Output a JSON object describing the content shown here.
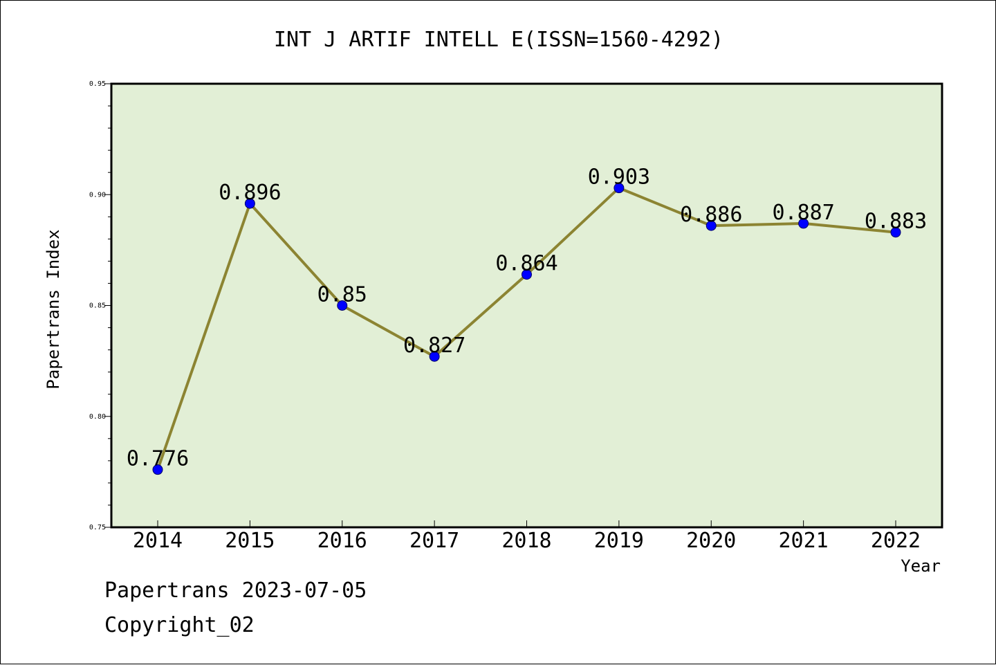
{
  "chart_data": {
    "type": "line",
    "title": "INT J ARTIF INTELL E(ISSN=1560-4292)",
    "xlabel": "Year",
    "ylabel": "Papertrans Index",
    "categories": [
      "2014",
      "2015",
      "2016",
      "2017",
      "2018",
      "2019",
      "2020",
      "2021",
      "2022"
    ],
    "values": [
      0.776,
      0.896,
      0.85,
      0.827,
      0.864,
      0.903,
      0.886,
      0.887,
      0.883
    ],
    "data_labels": [
      "0.776",
      "0.896",
      "0.85",
      "0.827",
      "0.864",
      "0.903",
      "0.886",
      "0.887",
      "0.883"
    ],
    "ylim": [
      0.75,
      0.95
    ],
    "yticks": [
      0.75,
      0.8,
      0.85,
      0.9,
      0.95
    ],
    "ytick_labels": [
      "0.75",
      "0.80",
      "0.85",
      "0.90",
      "0.95"
    ],
    "grid": false,
    "colors": {
      "plot_background": "#e2efd6",
      "line": "#8c8432",
      "marker": "#0000ff"
    }
  },
  "footer": {
    "line1": "Papertrans 2023-07-05",
    "line2": "Copyright_02"
  }
}
